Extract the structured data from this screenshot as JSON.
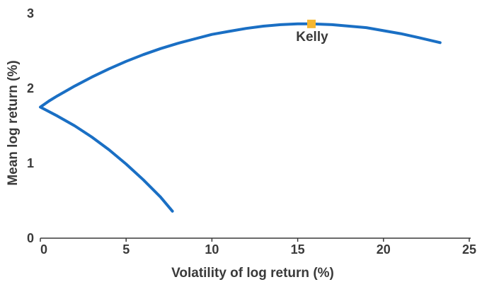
{
  "chart_data": {
    "type": "line",
    "title": "",
    "xlabel": "Volatility of log return (%)",
    "ylabel": "Mean log return (%)",
    "xlim": [
      0,
      25
    ],
    "ylim": [
      0,
      3
    ],
    "x_ticks": [
      "0",
      "5",
      "10",
      "15",
      "20",
      "25"
    ],
    "y_ticks": [
      "0",
      "1",
      "2",
      "3"
    ],
    "grid": false,
    "legend": "none",
    "series": [
      {
        "color": "#1a6fc4",
        "points": [
          [
            7.7,
            0.36
          ],
          [
            7.0,
            0.55
          ],
          [
            6.0,
            0.78
          ],
          [
            5.0,
            0.99
          ],
          [
            4.0,
            1.18
          ],
          [
            3.0,
            1.35
          ],
          [
            2.0,
            1.5
          ],
          [
            1.0,
            1.63
          ],
          [
            0.0,
            1.75
          ],
          [
            0.5,
            1.83
          ],
          [
            1.0,
            1.9
          ],
          [
            2.0,
            2.03
          ],
          [
            3.0,
            2.15
          ],
          [
            4.0,
            2.26
          ],
          [
            5.0,
            2.36
          ],
          [
            6.0,
            2.45
          ],
          [
            7.0,
            2.53
          ],
          [
            8.0,
            2.6
          ],
          [
            9.0,
            2.66
          ],
          [
            10.0,
            2.72
          ],
          [
            11.0,
            2.76
          ],
          [
            12.0,
            2.8
          ],
          [
            13.0,
            2.83
          ],
          [
            14.0,
            2.85
          ],
          [
            15.0,
            2.86
          ],
          [
            15.8,
            2.86
          ],
          [
            17.0,
            2.85
          ],
          [
            18.0,
            2.83
          ],
          [
            19.0,
            2.81
          ],
          [
            20.0,
            2.77
          ],
          [
            21.0,
            2.73
          ],
          [
            22.0,
            2.68
          ],
          [
            23.3,
            2.61
          ]
        ]
      }
    ],
    "annotations": [
      {
        "label": "Kelly",
        "x": 15.8,
        "y": 2.86,
        "marker_color": "#f5b731"
      }
    ]
  }
}
